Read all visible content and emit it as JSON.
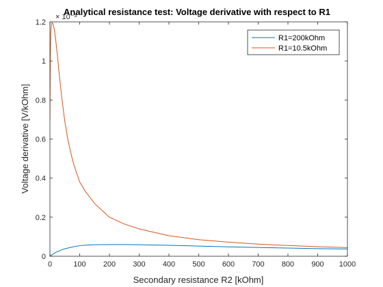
{
  "chart_data": {
    "type": "line",
    "title": "Analytical resistance test: Voltage derivative with respect to R1",
    "xlabel": "Secondary resistance  R2 [kOhm]",
    "ylabel": "Voltage derivative [V/kOhm]",
    "y_exponent_label": "× 10⁻³",
    "xlim": [
      0,
      1000
    ],
    "ylim": [
      0,
      1.2
    ],
    "xticks": [
      0,
      100,
      200,
      300,
      400,
      500,
      600,
      700,
      800,
      900,
      1000
    ],
    "yticks": [
      0,
      0.2,
      0.4,
      0.6,
      0.8,
      1,
      1.2
    ],
    "grid": false,
    "legend_position": "top-right",
    "series": [
      {
        "name": "R1=200kOhm",
        "color": "#0072BD",
        "x": [
          0,
          5,
          10,
          20,
          30,
          40,
          50,
          60,
          80,
          100,
          120,
          150,
          200,
          250,
          300,
          400,
          500,
          600,
          700,
          800,
          900,
          1000
        ],
        "y": [
          0,
          0.006,
          0.011,
          0.02,
          0.027,
          0.033,
          0.038,
          0.042,
          0.049,
          0.054,
          0.057,
          0.059,
          0.06,
          0.06,
          0.059,
          0.056,
          0.052,
          0.048,
          0.045,
          0.042,
          0.039,
          0.037
        ]
      },
      {
        "name": "R1=10.5kOhm",
        "color": "#D95319",
        "x": [
          0,
          1,
          2,
          3,
          4,
          5,
          6,
          8,
          10,
          12,
          15,
          20,
          25,
          30,
          40,
          50,
          60,
          70,
          80,
          100,
          120,
          150,
          200,
          250,
          300,
          400,
          500,
          600,
          700,
          800,
          900,
          1000
        ],
        "y": [
          0.7,
          0.95,
          1.08,
          1.14,
          1.17,
          1.185,
          1.19,
          1.195,
          1.19,
          1.18,
          1.16,
          1.1,
          1.03,
          0.95,
          0.81,
          0.69,
          0.6,
          0.53,
          0.47,
          0.38,
          0.33,
          0.27,
          0.2,
          0.165,
          0.14,
          0.105,
          0.085,
          0.072,
          0.062,
          0.055,
          0.049,
          0.044
        ]
      }
    ]
  }
}
